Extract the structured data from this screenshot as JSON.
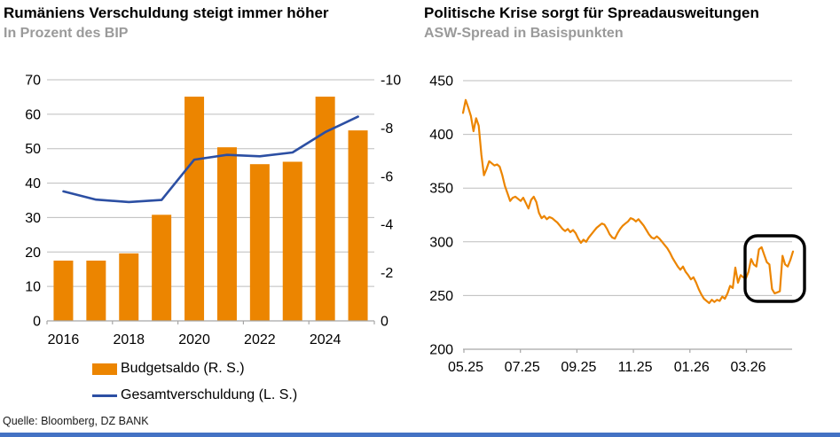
{
  "page": {
    "source_note": "Quelle: Bloomberg, DZ BANK",
    "accent_bar_color": "#4472C4"
  },
  "colors": {
    "orange": "#EC8500",
    "navy": "#2C4FA3",
    "gridline": "#BDBDBD",
    "axis": "#A6A6A6",
    "subtitle_gray": "#9A9A9A",
    "highlight_box": "#000000"
  },
  "chart_data": [
    {
      "type": "bar",
      "title": "Rumäniens Verschuldung steigt immer höher",
      "subtitle": "In Prozent des BIP",
      "categories": [
        "2016",
        "2017",
        "2018",
        "2019",
        "2020",
        "2021",
        "2022",
        "2023",
        "2024",
        "2025"
      ],
      "x_tick_labels": [
        "2016",
        "2018",
        "2020",
        "2022",
        "2024"
      ],
      "left_axis": {
        "min": 0,
        "max": 70,
        "step": 10,
        "labels": [
          "0",
          "10",
          "20",
          "30",
          "40",
          "50",
          "60",
          "70"
        ]
      },
      "right_axis": {
        "min": 0,
        "max": -10,
        "step": -2,
        "labels": [
          "-10",
          "-8",
          "-6",
          "-4",
          "-2",
          "0"
        ]
      },
      "grid": true,
      "legend_position": "bottom-left",
      "series": [
        {
          "name": "Budgetsaldo (R. S.)",
          "type": "bar",
          "axis": "right",
          "color": "#EC8500",
          "values": [
            -2.5,
            -2.5,
            -2.8,
            -4.4,
            -9.3,
            -7.2,
            -6.5,
            -6.6,
            -9.3,
            -7.9
          ]
        },
        {
          "name": "Gesamtverschuldung (L. S.)",
          "type": "line",
          "axis": "left",
          "color": "#2C4FA3",
          "values": [
            37.6,
            35.2,
            34.5,
            35.1,
            46.8,
            48.2,
            47.8,
            48.9,
            54.8,
            59.3
          ]
        }
      ]
    },
    {
      "type": "line",
      "title": "Politische Krise sorgt für Spreadausweitungen",
      "subtitle": "ASW-Spread in Basispunkten",
      "ylim": [
        200,
        450
      ],
      "y_step": 50,
      "y_labels": [
        "200",
        "250",
        "300",
        "350",
        "400",
        "450"
      ],
      "x_tick_labels": [
        "05.25",
        "07.25",
        "09.25",
        "11.25",
        "01.26",
        "03.26"
      ],
      "grid": true,
      "annotation": {
        "shape": "rounded-rect-highlight",
        "color": "#000000",
        "x_range": "03.26 to end",
        "y_range": [
          245,
          303
        ]
      },
      "series": [
        {
          "name": "ASW-Spread",
          "color": "#EC8500",
          "values": [
            420,
            432,
            425,
            417,
            403,
            415,
            408,
            381,
            362,
            368,
            375,
            373,
            371,
            372,
            370,
            362,
            352,
            345,
            338,
            341,
            342,
            340,
            338,
            341,
            336,
            331,
            339,
            342,
            337,
            327,
            322,
            324,
            321,
            323,
            322,
            320,
            318,
            315,
            312,
            310,
            312,
            309,
            311,
            308,
            303,
            299,
            302,
            300,
            304,
            307,
            310,
            313,
            315,
            317,
            316,
            312,
            307,
            304,
            303,
            308,
            312,
            315,
            317,
            319,
            322,
            321,
            319,
            321,
            318,
            315,
            311,
            307,
            304,
            303,
            305,
            303,
            300,
            297,
            294,
            290,
            285,
            281,
            277,
            274,
            277,
            272,
            269,
            265,
            267,
            262,
            256,
            251,
            247,
            245,
            243,
            246,
            244,
            246,
            245,
            249,
            247,
            252,
            259,
            257,
            276,
            262,
            269,
            267,
            266,
            272,
            284,
            279,
            277,
            293,
            295,
            288,
            281,
            279,
            256,
            252,
            253,
            254,
            287,
            279,
            277,
            283,
            291
          ]
        }
      ]
    }
  ]
}
